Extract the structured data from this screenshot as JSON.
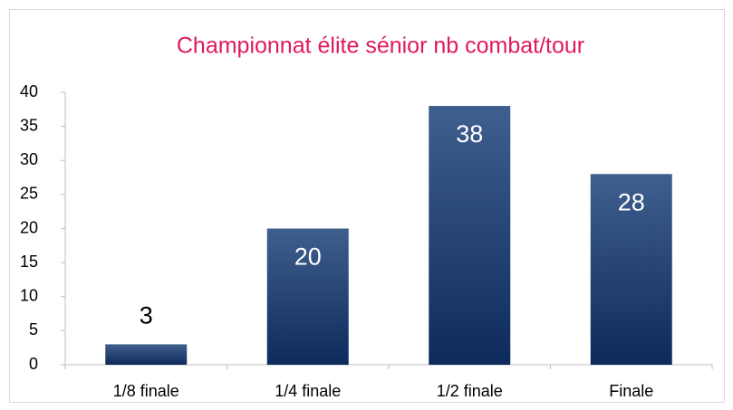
{
  "chart_data": {
    "type": "bar",
    "title": "Championnat élite sénior nb combat/tour",
    "categories": [
      "1/8 finale",
      "1/4 finale",
      "1/2 finale",
      "Finale"
    ],
    "values": [
      3,
      20,
      38,
      28
    ],
    "color": "#1f3d6e",
    "ylim": [
      0,
      40
    ],
    "yticks": [
      0,
      5,
      10,
      15,
      20,
      25,
      30,
      35,
      40
    ],
    "grid": false
  }
}
